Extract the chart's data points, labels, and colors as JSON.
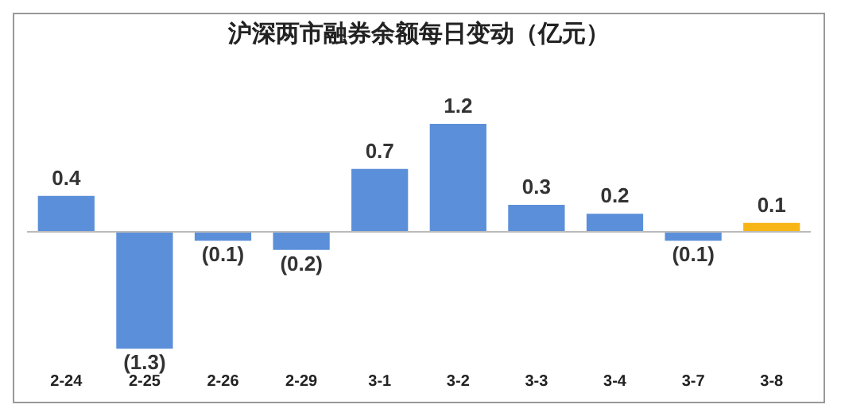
{
  "chart_data": {
    "type": "bar",
    "title": "沪深两市融券余额每日变动（亿元）",
    "categories": [
      "2-24",
      "2-25",
      "2-26",
      "2-29",
      "3-1",
      "3-2",
      "3-3",
      "3-4",
      "3-7",
      "3-8"
    ],
    "values": [
      0.4,
      -1.3,
      -0.1,
      -0.2,
      0.7,
      1.2,
      0.3,
      0.2,
      -0.1,
      0.1
    ],
    "colors": [
      "#5b8fd9",
      "#5b8fd9",
      "#5b8fd9",
      "#5b8fd9",
      "#5b8fd9",
      "#5b8fd9",
      "#5b8fd9",
      "#5b8fd9",
      "#5b8fd9",
      "#f7b516"
    ],
    "value_labels": [
      "0.4",
      "(1.3)",
      "(0.1)",
      "(0.2)",
      "0.7",
      "1.2",
      "0.3",
      "0.2",
      "(0.1)",
      "0.1"
    ],
    "grid": false,
    "legend": false
  }
}
